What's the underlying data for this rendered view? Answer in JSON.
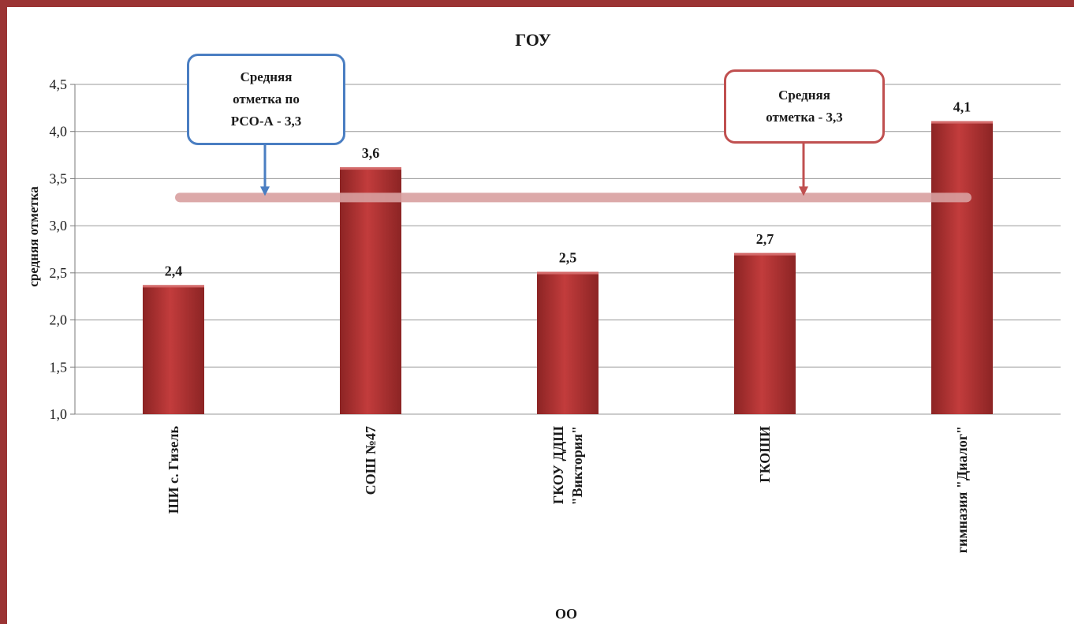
{
  "chart_data": {
    "type": "bar",
    "title": "ГОУ",
    "xlabel": "ОО",
    "ylabel": "средняя отметка",
    "ylim": [
      1.0,
      4.5
    ],
    "yticks": [
      "1,0",
      "1,5",
      "2,0",
      "2,5",
      "3,0",
      "3,5",
      "4,0",
      "4,5"
    ],
    "categories": [
      "ШИ с. Гизель",
      "СОШ №47",
      "ГКОУ ДДШ \"Виктория\"",
      "ГКОШИ",
      "гимназия \"Диалог\""
    ],
    "category_lines": [
      [
        "ШИ с. Гизель"
      ],
      [
        "СОШ №47"
      ],
      [
        "ГКОУ ДДШ",
        "\"Виктория\""
      ],
      [
        "ГКОШИ"
      ],
      [
        "гимназия  \"Диалог\""
      ]
    ],
    "values": [
      2.37,
      3.62,
      2.51,
      2.71,
      4.11
    ],
    "data_labels": [
      "2,4",
      "3,6",
      "2,5",
      "2,7",
      "4,1"
    ],
    "bar_color": "#b03535",
    "reference_line": {
      "value": 3.3,
      "color": "#d9a0a0"
    },
    "grid": true,
    "legend": "none"
  },
  "annotations": {
    "left_callout": {
      "text": "Средняя\nотметка по\nРСО-А - 3,3",
      "color": "#4a7ec2"
    },
    "right_callout": {
      "text": "Средняя\nотметка - 3,3",
      "color": "#c05050"
    }
  },
  "frame_color": "#9b3434"
}
